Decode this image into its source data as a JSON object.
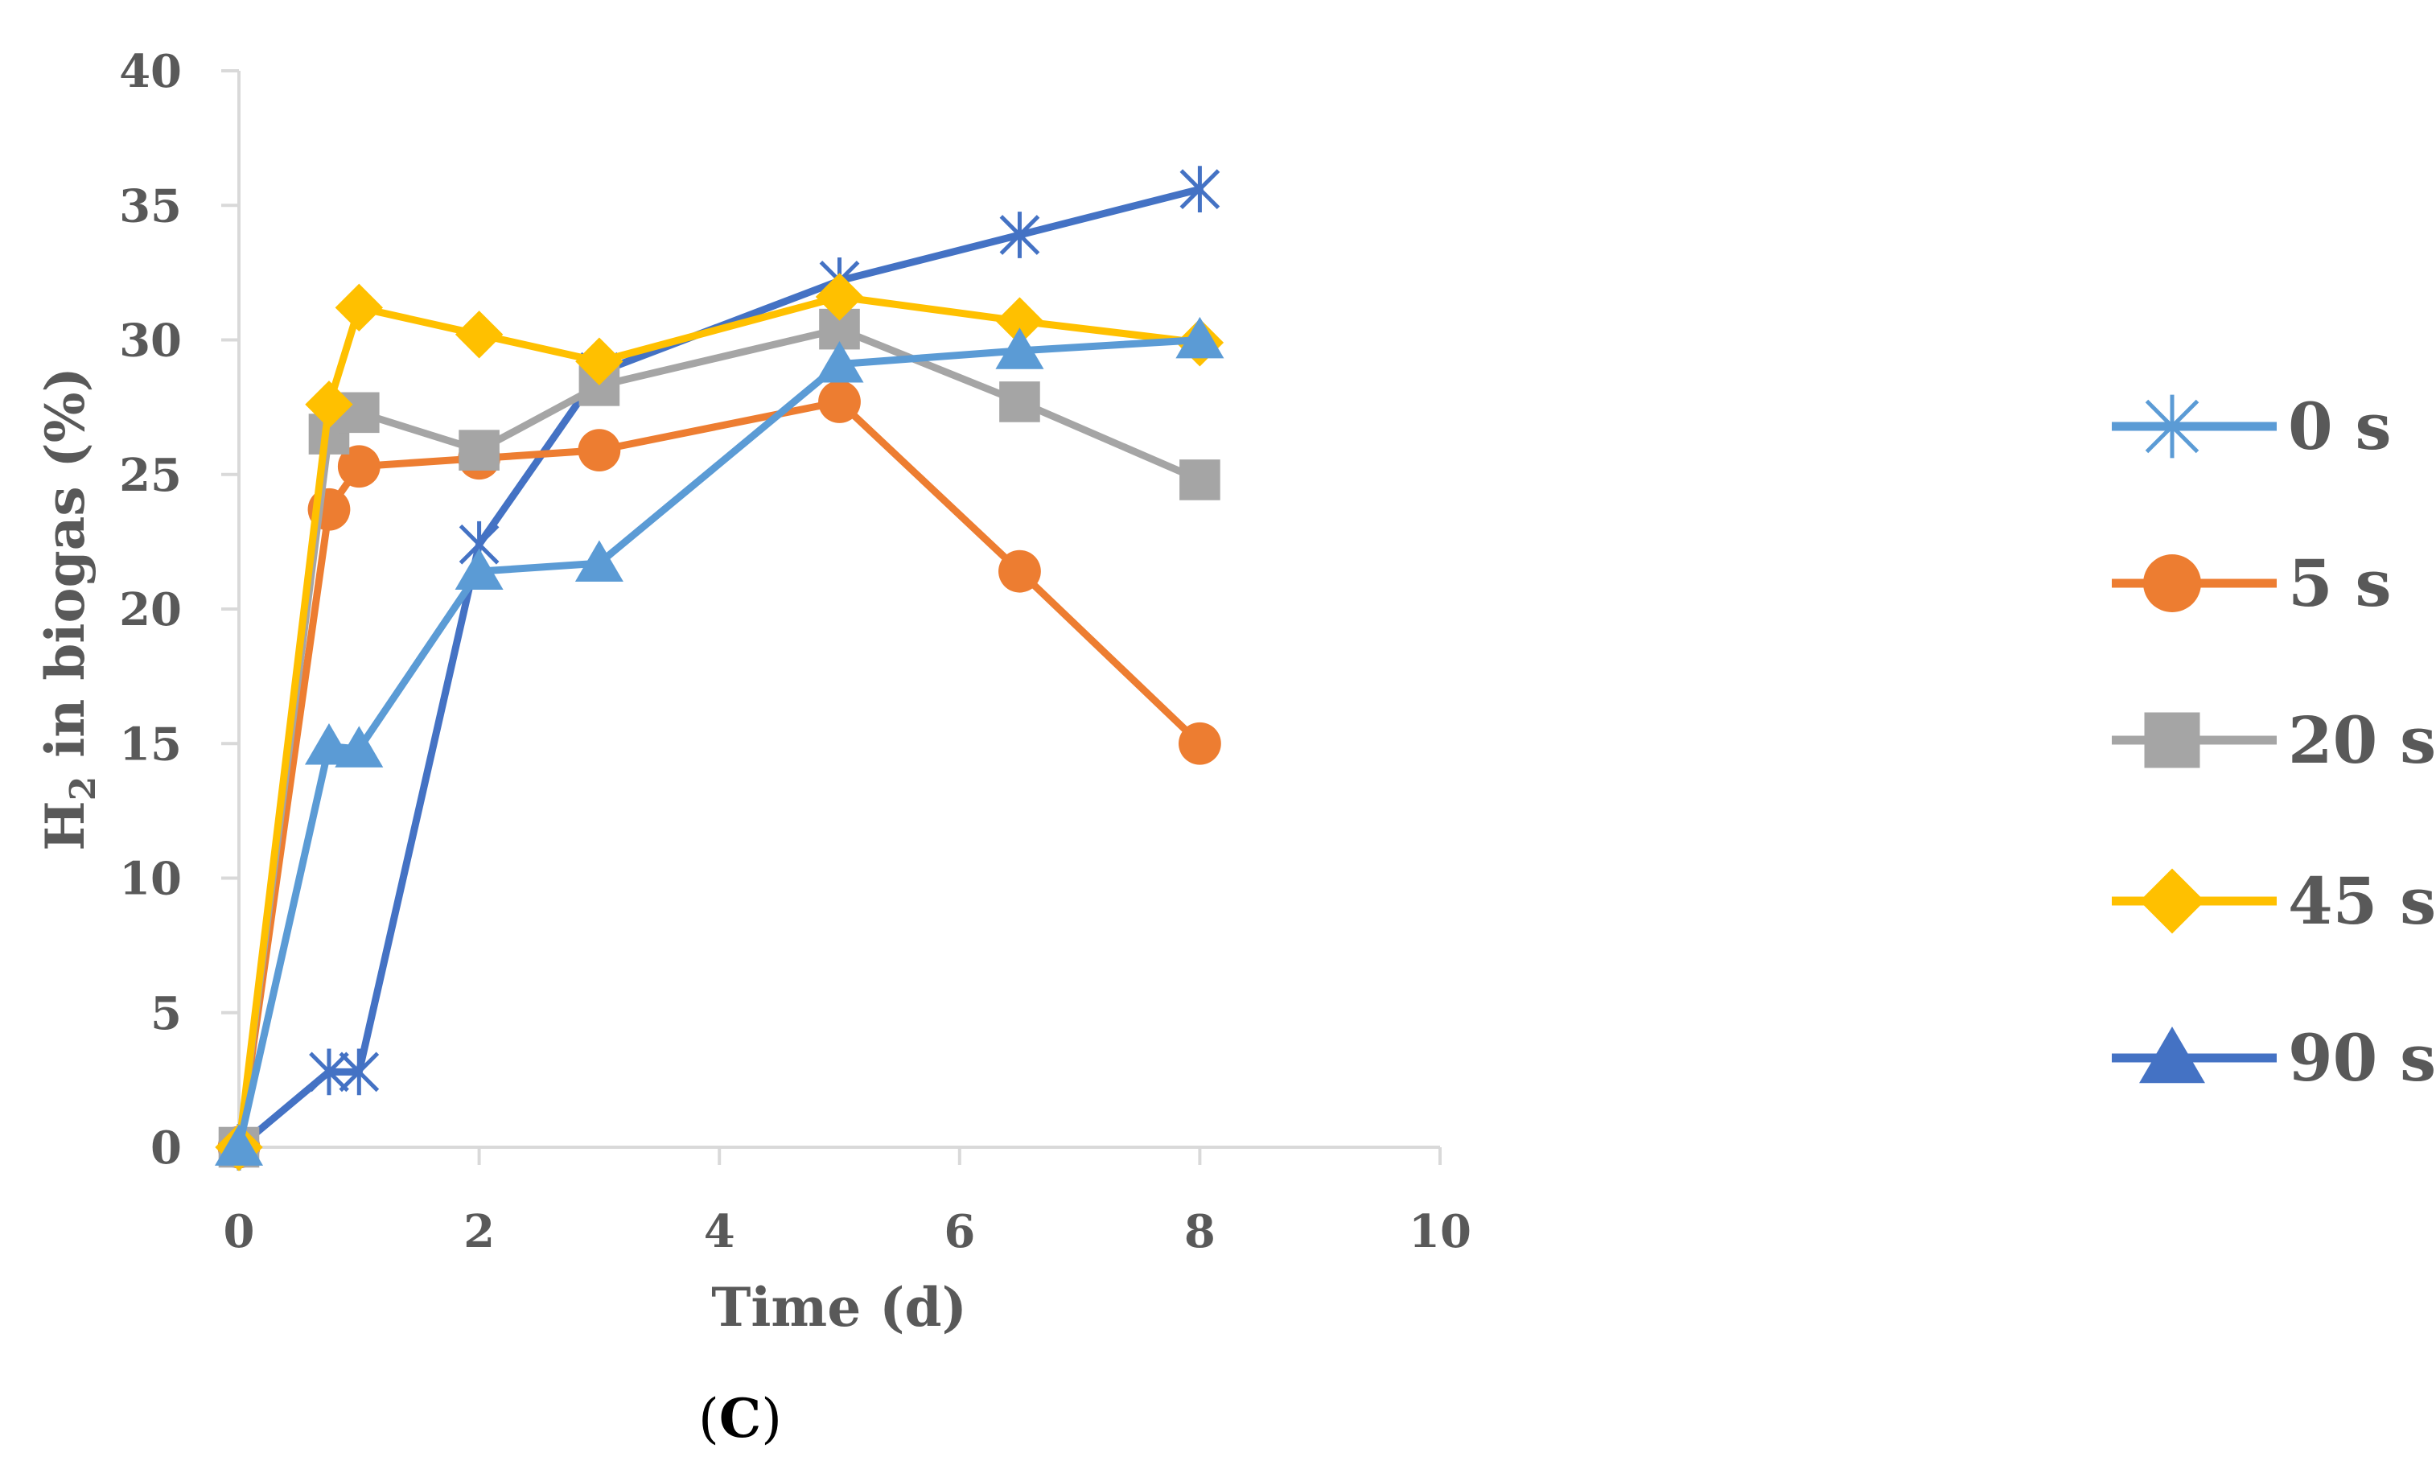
{
  "chart_data": {
    "type": "line",
    "title": "",
    "xlabel": "Time (d)",
    "ylabel_main": "H",
    "ylabel_sub": "2",
    "ylabel_rest": " in biogas (%)",
    "xlim": [
      0,
      10
    ],
    "ylim": [
      0,
      40
    ],
    "xticks": [
      "0",
      "2",
      "4",
      "6",
      "8",
      "10"
    ],
    "yticks": [
      "0",
      "5",
      "10",
      "15",
      "20",
      "25",
      "30",
      "35",
      "40"
    ],
    "grid": false,
    "legend_position": "right",
    "caption": {
      "open": "(",
      "letter": "C",
      "close": ")"
    },
    "series": [
      {
        "name": "0 s",
        "color": "#4472C4",
        "legend_color": "#5B9BD5",
        "marker": "asterisk",
        "x": [
          0,
          0.75,
          1,
          2,
          3,
          5,
          6.5,
          8
        ],
        "y": [
          0,
          2.8,
          2.8,
          22.4,
          28.8,
          32.2,
          33.9,
          35.6
        ]
      },
      {
        "name": "5 s",
        "color": "#ED7D31",
        "legend_color": "#ED7D31",
        "marker": "circle",
        "x": [
          0,
          0.75,
          1,
          2,
          3,
          5,
          6.5,
          8
        ],
        "y": [
          0,
          23.7,
          25.3,
          25.6,
          25.9,
          27.7,
          21.4,
          15.0
        ]
      },
      {
        "name": "20 s",
        "color": "#A5A5A5",
        "legend_color": "#A5A5A5",
        "marker": "square",
        "x": [
          0,
          0.75,
          1,
          2,
          3,
          5,
          6.5,
          8
        ],
        "y": [
          0,
          26.5,
          27.3,
          25.9,
          28.3,
          30.4,
          27.7,
          24.8
        ]
      },
      {
        "name": "45 s",
        "color": "#FFC000",
        "legend_color": "#FFC000",
        "marker": "diamond",
        "x": [
          0,
          0.75,
          1,
          2,
          3,
          5,
          6.5,
          8
        ],
        "y": [
          0,
          27.6,
          31.2,
          30.2,
          29.2,
          31.6,
          30.7,
          29.9
        ]
      },
      {
        "name": "90 s",
        "color": "#5B9BD5",
        "legend_color": "#4472C4",
        "marker": "triangle",
        "x": [
          0,
          0.75,
          1,
          2,
          3,
          5,
          6.5,
          8
        ],
        "y": [
          0,
          14.9,
          14.8,
          21.4,
          21.7,
          29.1,
          29.6,
          30.0
        ]
      }
    ]
  }
}
